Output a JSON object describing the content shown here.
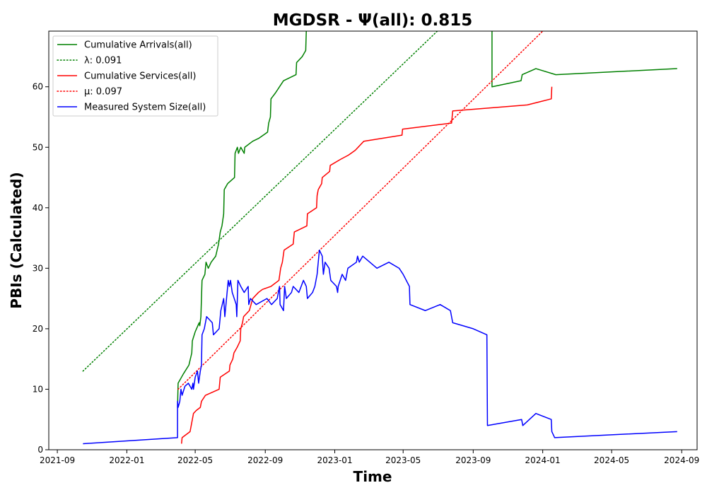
{
  "chart_data": {
    "type": "line",
    "title": "MGDSR -  Ψ(all): 0.815",
    "xlabel": "Time",
    "ylabel": "PBIs (Calculated)",
    "xlim": [
      "2021-08-17",
      "2024-09-28"
    ],
    "ylim": [
      0,
      69.2
    ],
    "x_ticks": [
      "2021-09",
      "2022-01",
      "2022-05",
      "2022-09",
      "2023-01",
      "2023-05",
      "2023-09",
      "2024-01",
      "2024-05",
      "2024-09"
    ],
    "y_ticks": [
      0,
      10,
      20,
      30,
      40,
      50,
      60
    ],
    "grid": false,
    "legend_position": "top-left",
    "series": [
      {
        "name": "Cumulative Arrivals(all)",
        "style": "solid",
        "color": "#008000",
        "points": [
          [
            "2022-03-31",
            7
          ],
          [
            "2022-04-01",
            11
          ],
          [
            "2022-04-10",
            12.5
          ],
          [
            "2022-04-20",
            14
          ],
          [
            "2022-04-25",
            16
          ],
          [
            "2022-04-26",
            18
          ],
          [
            "2022-05-01",
            19.5
          ],
          [
            "2022-05-08",
            21
          ],
          [
            "2022-05-09",
            20.5
          ],
          [
            "2022-05-11",
            22
          ],
          [
            "2022-05-13",
            28
          ],
          [
            "2022-05-18",
            29
          ],
          [
            "2022-05-20",
            31
          ],
          [
            "2022-05-24",
            30
          ],
          [
            "2022-05-29",
            31
          ],
          [
            "2022-06-06",
            32
          ],
          [
            "2022-06-11",
            34
          ],
          [
            "2022-06-14",
            36
          ],
          [
            "2022-06-17",
            37
          ],
          [
            "2022-06-20",
            39
          ],
          [
            "2022-06-21",
            43
          ],
          [
            "2022-06-27",
            44
          ],
          [
            "2022-07-09",
            45
          ],
          [
            "2022-07-10",
            49
          ],
          [
            "2022-07-14",
            50
          ],
          [
            "2022-07-16",
            49
          ],
          [
            "2022-07-20",
            50
          ],
          [
            "2022-07-26",
            49
          ],
          [
            "2022-07-27",
            50
          ],
          [
            "2022-08-10",
            51
          ],
          [
            "2022-08-21",
            51.5
          ],
          [
            "2022-09-05",
            52.5
          ],
          [
            "2022-09-07",
            54
          ],
          [
            "2022-09-10",
            55
          ],
          [
            "2022-09-11",
            58
          ],
          [
            "2022-09-19",
            59
          ],
          [
            "2022-10-03",
            61
          ],
          [
            "2022-10-25",
            62
          ],
          [
            "2022-10-26",
            64
          ],
          [
            "2022-11-05",
            65
          ],
          [
            "2022-11-11",
            66
          ],
          [
            "2022-11-12",
            69.2
          ]
        ],
        "points_after_gap": [
          [
            "2023-10-04",
            69.2
          ],
          [
            "2023-10-04",
            60
          ],
          [
            "2023-11-24",
            61
          ],
          [
            "2023-11-26",
            62
          ],
          [
            "2023-12-20",
            63
          ],
          [
            "2024-01-24",
            62
          ],
          [
            "2024-08-24",
            63
          ]
        ]
      },
      {
        "name": "λ: 0.091",
        "style": "dotted",
        "color": "#008000",
        "points": [
          [
            "2021-10-16",
            13
          ],
          [
            "2023-06-30",
            69.2
          ]
        ]
      },
      {
        "name": "Cumulative Services(all)",
        "style": "solid",
        "color": "#ff0000",
        "points": [
          [
            "2022-04-07",
            1
          ],
          [
            "2022-04-08",
            2
          ],
          [
            "2022-04-22",
            3
          ],
          [
            "2022-04-25",
            4.5
          ],
          [
            "2022-04-28",
            6
          ],
          [
            "2022-05-03",
            6.5
          ],
          [
            "2022-05-10",
            7
          ],
          [
            "2022-05-12",
            8
          ],
          [
            "2022-05-19",
            9
          ],
          [
            "2022-06-12",
            10
          ],
          [
            "2022-06-14",
            12
          ],
          [
            "2022-06-30",
            13
          ],
          [
            "2022-07-01",
            14
          ],
          [
            "2022-07-06",
            15
          ],
          [
            "2022-07-08",
            16
          ],
          [
            "2022-07-14",
            17
          ],
          [
            "2022-07-19",
            18
          ],
          [
            "2022-07-20",
            20
          ],
          [
            "2022-07-23",
            21
          ],
          [
            "2022-07-25",
            22
          ],
          [
            "2022-08-04",
            23
          ],
          [
            "2022-08-07",
            24
          ],
          [
            "2022-08-10",
            25
          ],
          [
            "2022-08-20",
            26
          ],
          [
            "2022-08-27",
            26.5
          ],
          [
            "2022-09-11",
            27
          ],
          [
            "2022-09-25",
            28
          ],
          [
            "2022-09-28",
            30
          ],
          [
            "2022-10-01",
            31
          ],
          [
            "2022-10-04",
            33
          ],
          [
            "2022-10-20",
            34
          ],
          [
            "2022-10-22",
            36
          ],
          [
            "2022-11-13",
            37
          ],
          [
            "2022-11-14",
            39
          ],
          [
            "2022-11-30",
            40
          ],
          [
            "2022-12-01",
            42
          ],
          [
            "2022-12-03",
            43
          ],
          [
            "2022-12-09",
            44
          ],
          [
            "2022-12-10",
            45
          ],
          [
            "2022-12-23",
            46
          ],
          [
            "2022-12-24",
            47
          ],
          [
            "2023-01-11",
            48
          ],
          [
            "2023-01-25",
            48.7
          ],
          [
            "2023-02-06",
            49.5
          ],
          [
            "2023-02-21",
            51
          ],
          [
            "2023-04-29",
            52
          ],
          [
            "2023-04-30",
            53
          ],
          [
            "2023-07-25",
            54
          ],
          [
            "2023-07-27",
            56
          ],
          [
            "2023-12-05",
            57
          ],
          [
            "2024-01-16",
            58
          ],
          [
            "2024-01-17",
            60
          ]
        ]
      },
      {
        "name": "μ: 0.097",
        "style": "dotted",
        "color": "#ff0000",
        "points": [
          [
            "2022-04-01",
            10
          ],
          [
            "2024-01-01",
            69.2
          ]
        ]
      },
      {
        "name": "Measured System Size(all)",
        "style": "solid",
        "color": "#0000ff",
        "points": [
          [
            "2021-10-16",
            1
          ],
          [
            "2022-03-31",
            2
          ],
          [
            "2022-03-31",
            8
          ],
          [
            "2022-04-01",
            7
          ],
          [
            "2022-04-04",
            8
          ],
          [
            "2022-04-06",
            10
          ],
          [
            "2022-04-08",
            9
          ],
          [
            "2022-04-13",
            10.5
          ],
          [
            "2022-04-19",
            11
          ],
          [
            "2022-04-25",
            10
          ],
          [
            "2022-04-27",
            11
          ],
          [
            "2022-04-28",
            10
          ],
          [
            "2022-05-01",
            12
          ],
          [
            "2022-05-05",
            13
          ],
          [
            "2022-05-07",
            11
          ],
          [
            "2022-05-10",
            13
          ],
          [
            "2022-05-12",
            14
          ],
          [
            "2022-05-13",
            19
          ],
          [
            "2022-05-17",
            20
          ],
          [
            "2022-05-21",
            22
          ],
          [
            "2022-05-31",
            21
          ],
          [
            "2022-06-02",
            19
          ],
          [
            "2022-06-12",
            20
          ],
          [
            "2022-06-15",
            23
          ],
          [
            "2022-06-20",
            25
          ],
          [
            "2022-06-22",
            22
          ],
          [
            "2022-06-28",
            28
          ],
          [
            "2022-06-30",
            27
          ],
          [
            "2022-07-02",
            28
          ],
          [
            "2022-07-05",
            26
          ],
          [
            "2022-07-12",
            24
          ],
          [
            "2022-07-13",
            22
          ],
          [
            "2022-07-15",
            28
          ],
          [
            "2022-07-20",
            27
          ],
          [
            "2022-07-26",
            26
          ],
          [
            "2022-08-02",
            27
          ],
          [
            "2022-08-03",
            24
          ],
          [
            "2022-08-06",
            25
          ],
          [
            "2022-08-16",
            24
          ],
          [
            "2022-09-04",
            25
          ],
          [
            "2022-09-12",
            24
          ],
          [
            "2022-09-22",
            25
          ],
          [
            "2022-09-26",
            27
          ],
          [
            "2022-09-27",
            24
          ],
          [
            "2022-10-03",
            23
          ],
          [
            "2022-10-05",
            27
          ],
          [
            "2022-10-08",
            25
          ],
          [
            "2022-10-17",
            26
          ],
          [
            "2022-10-20",
            27
          ],
          [
            "2022-10-30",
            26
          ],
          [
            "2022-11-07",
            28
          ],
          [
            "2022-11-12",
            27
          ],
          [
            "2022-11-14",
            25
          ],
          [
            "2022-11-23",
            26
          ],
          [
            "2022-11-27",
            27
          ],
          [
            "2022-12-01",
            29
          ],
          [
            "2022-12-05",
            33
          ],
          [
            "2022-12-10",
            32
          ],
          [
            "2022-12-12",
            29
          ],
          [
            "2022-12-15",
            31
          ],
          [
            "2022-12-22",
            30
          ],
          [
            "2022-12-25",
            28
          ],
          [
            "2023-01-04",
            27
          ],
          [
            "2023-01-06",
            26
          ],
          [
            "2023-01-07",
            27
          ],
          [
            "2023-01-14",
            29
          ],
          [
            "2023-01-20",
            28
          ],
          [
            "2023-01-24",
            30
          ],
          [
            "2023-02-08",
            31
          ],
          [
            "2023-02-10",
            32
          ],
          [
            "2023-02-13",
            31
          ],
          [
            "2023-02-19",
            32
          ],
          [
            "2023-03-16",
            30
          ],
          [
            "2023-04-06",
            31
          ],
          [
            "2023-04-24",
            30
          ],
          [
            "2023-05-01",
            29
          ],
          [
            "2023-05-12",
            27
          ],
          [
            "2023-05-13",
            24
          ],
          [
            "2023-06-09",
            23
          ],
          [
            "2023-07-05",
            24
          ],
          [
            "2023-07-23",
            23
          ],
          [
            "2023-07-27",
            21
          ],
          [
            "2023-09-01",
            20
          ],
          [
            "2023-09-25",
            19
          ],
          [
            "2023-09-26",
            4
          ],
          [
            "2023-11-25",
            5
          ],
          [
            "2023-11-27",
            4
          ],
          [
            "2023-12-20",
            6
          ],
          [
            "2024-01-16",
            5
          ],
          [
            "2024-01-17",
            3
          ],
          [
            "2024-01-22",
            2
          ],
          [
            "2024-08-24",
            3
          ]
        ]
      }
    ]
  }
}
